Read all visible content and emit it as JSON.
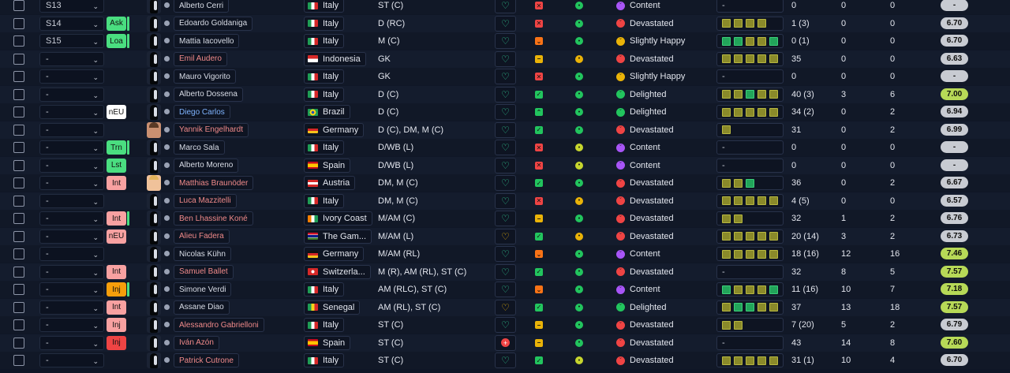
{
  "colors": {
    "badge_green": "#4ade80",
    "badge_red": "#f87171",
    "badge_orange": "#f59e0b",
    "badge_white": "#ffffff",
    "form_green": "#22a45a",
    "form_olive": "#8a8a2a",
    "rating_grey": "#c8cbd2",
    "rating_green": "#b7d957",
    "ok_green": "#22c55e",
    "bad_red": "#ef4444",
    "warn_yellow": "#eab308",
    "warn_orange": "#f97316"
  },
  "rows": [
    {
      "squad": "S13",
      "badge": "",
      "name": "Alberto Cerri",
      "name_style": "normal",
      "avatar": "sil",
      "nation": "Italy",
      "flag": "italy",
      "pos": "ST (C)",
      "heart": "green",
      "status": "x",
      "cond": "ok",
      "mood": "Content",
      "mood_face": "purple",
      "form": [],
      "form_empty": "-",
      "apps": "0",
      "goals": "0",
      "assists": "0",
      "rating": "-",
      "rating_style": "grey"
    },
    {
      "squad": "S14",
      "badge": "Ask",
      "badge_color": "green",
      "badge_edge": true,
      "name": "Edoardo Goldaniga",
      "name_style": "normal",
      "avatar": "sil",
      "nation": "Italy",
      "flag": "italy",
      "pos": "D (RC)",
      "heart": "green",
      "status": "x",
      "cond": "ok",
      "mood": "Devastated",
      "mood_face": "red",
      "form": [
        "olive",
        "olive",
        "olive",
        "olive"
      ],
      "form_empty": "",
      "apps": "1 (3)",
      "goals": "0",
      "assists": "0",
      "rating": "6.70",
      "rating_style": "grey"
    },
    {
      "squad": "S15",
      "badge": "Loa",
      "badge_color": "green",
      "badge_edge": true,
      "name": "Mattia Iacovello",
      "name_style": "normal",
      "avatar": "sil",
      "nation": "Italy",
      "flag": "italy",
      "pos": "M (C)",
      "heart": "green",
      "status": "down",
      "cond": "ok",
      "mood": "Slightly Happy",
      "mood_face": "yellow",
      "form": [
        "green",
        "green",
        "olive",
        "olive",
        "green"
      ],
      "form_empty": "",
      "apps": "0 (1)",
      "goals": "0",
      "assists": "0",
      "rating": "6.70",
      "rating_style": "grey"
    },
    {
      "squad": "-",
      "badge": "",
      "name": "Emil Audero",
      "name_style": "red",
      "avatar": "sil",
      "nation": "Indonesia",
      "flag": "indonesia",
      "pos": "GK",
      "heart": "green",
      "status": "minus",
      "cond": "orange",
      "mood": "Devastated",
      "mood_face": "red",
      "form": [
        "olive",
        "olive",
        "olive",
        "olive",
        "olive"
      ],
      "form_empty": "",
      "apps": "35",
      "goals": "0",
      "assists": "0",
      "rating": "6.63",
      "rating_style": "grey"
    },
    {
      "squad": "-",
      "badge": "",
      "name": "Mauro Vigorito",
      "name_style": "normal",
      "avatar": "sil",
      "nation": "Italy",
      "flag": "italy",
      "pos": "GK",
      "heart": "green",
      "status": "x",
      "cond": "ok",
      "mood": "Slightly Happy",
      "mood_face": "yellow",
      "form": [],
      "form_empty": "-",
      "apps": "0",
      "goals": "0",
      "assists": "0",
      "rating": "-",
      "rating_style": "grey"
    },
    {
      "squad": "-",
      "badge": "",
      "name": "Alberto Dossena",
      "name_style": "normal",
      "avatar": "sil",
      "nation": "Italy",
      "flag": "italy",
      "pos": "D (C)",
      "heart": "green",
      "status": "check",
      "cond": "ok",
      "mood": "Delighted",
      "mood_face": "green",
      "form": [
        "olive",
        "olive",
        "green",
        "olive",
        "olive"
      ],
      "form_empty": "",
      "apps": "40 (3)",
      "goals": "3",
      "assists": "6",
      "rating": "7.00",
      "rating_style": "green"
    },
    {
      "squad": "-",
      "badge": "nEU",
      "badge_color": "white",
      "badge_edge": false,
      "name": "Diego Carlos",
      "name_style": "blue",
      "avatar": "sil",
      "nation": "Brazil",
      "flag": "brazil",
      "pos": "D (C)",
      "heart": "green",
      "status": "up",
      "cond": "ok",
      "mood": "Delighted",
      "mood_face": "green",
      "form": [
        "olive",
        "olive",
        "olive",
        "olive",
        "olive"
      ],
      "form_empty": "",
      "apps": "34 (2)",
      "goals": "0",
      "assists": "2",
      "rating": "6.94",
      "rating_style": "grey"
    },
    {
      "squad": "-",
      "badge": "",
      "name": "Yannik Engelhardt",
      "name_style": "red",
      "avatar": "face-a",
      "nation": "Germany",
      "flag": "germany",
      "pos": "D (C), DM, M (C)",
      "heart": "green",
      "status": "check",
      "cond": "ok",
      "mood": "Devastated",
      "mood_face": "red",
      "form": [
        "olive"
      ],
      "form_empty": "",
      "apps": "31",
      "goals": "0",
      "assists": "2",
      "rating": "6.99",
      "rating_style": "grey"
    },
    {
      "squad": "-",
      "badge": "Trn",
      "badge_color": "green",
      "badge_edge": true,
      "name": "Marco Sala",
      "name_style": "normal",
      "avatar": "sil",
      "nation": "Italy",
      "flag": "italy",
      "pos": "D/WB (L)",
      "heart": "green",
      "status": "x",
      "cond": "yellow",
      "mood": "Content",
      "mood_face": "purple",
      "form": [],
      "form_empty": "-",
      "apps": "0",
      "goals": "0",
      "assists": "0",
      "rating": "-",
      "rating_style": "grey"
    },
    {
      "squad": "-",
      "badge": "Lst",
      "badge_color": "green",
      "badge_edge": false,
      "name": "Alberto Moreno",
      "name_style": "normal",
      "avatar": "sil",
      "nation": "Spain",
      "flag": "spain",
      "pos": "D/WB (L)",
      "heart": "green",
      "status": "x",
      "cond": "yellow",
      "mood": "Content",
      "mood_face": "purple",
      "form": [],
      "form_empty": "-",
      "apps": "0",
      "goals": "0",
      "assists": "0",
      "rating": "-",
      "rating_style": "grey"
    },
    {
      "squad": "-",
      "badge": "Int",
      "badge_color": "red",
      "badge_edge": false,
      "name": "Matthias Braunöder",
      "name_style": "red",
      "avatar": "face-b",
      "nation": "Austria",
      "flag": "austria",
      "pos": "DM, M (C)",
      "heart": "green",
      "status": "check",
      "cond": "ok",
      "mood": "Devastated",
      "mood_face": "red",
      "form": [
        "olive",
        "olive",
        "green"
      ],
      "form_empty": "",
      "apps": "36",
      "goals": "0",
      "assists": "2",
      "rating": "6.67",
      "rating_style": "grey"
    },
    {
      "squad": "-",
      "badge": "",
      "name": "Luca Mazzitelli",
      "name_style": "red",
      "avatar": "sil",
      "nation": "Italy",
      "flag": "italy",
      "pos": "DM, M (C)",
      "heart": "green",
      "status": "x",
      "cond": "orange",
      "mood": "Devastated",
      "mood_face": "red",
      "form": [
        "olive",
        "olive",
        "olive",
        "olive",
        "olive"
      ],
      "form_empty": "",
      "apps": "4 (5)",
      "goals": "0",
      "assists": "0",
      "rating": "6.57",
      "rating_style": "grey"
    },
    {
      "squad": "-",
      "badge": "Int",
      "badge_color": "red",
      "badge_edge": true,
      "name": "Ben Lhassine Koné",
      "name_style": "red",
      "avatar": "sil",
      "nation": "Ivory Coast",
      "flag": "ivory",
      "pos": "M/AM (C)",
      "heart": "green",
      "status": "minus",
      "cond": "ok",
      "mood": "Devastated",
      "mood_face": "red",
      "form": [
        "olive",
        "olive"
      ],
      "form_empty": "",
      "apps": "32",
      "goals": "1",
      "assists": "2",
      "rating": "6.76",
      "rating_style": "grey"
    },
    {
      "squad": "-",
      "badge": "nEU",
      "badge_color": "red",
      "badge_edge": false,
      "name": "Alieu Fadera",
      "name_style": "red",
      "avatar": "sil",
      "nation": "The Gam...",
      "flag": "gambia",
      "pos": "M/AM (L)",
      "heart": "yellow",
      "status": "check",
      "cond": "orange",
      "mood": "Devastated",
      "mood_face": "red",
      "form": [
        "olive",
        "olive",
        "olive",
        "olive",
        "olive"
      ],
      "form_empty": "",
      "apps": "20 (14)",
      "goals": "3",
      "assists": "2",
      "rating": "6.73",
      "rating_style": "grey"
    },
    {
      "squad": "-",
      "badge": "",
      "name": "Nicolas Kühn",
      "name_style": "normal",
      "avatar": "sil",
      "nation": "Germany",
      "flag": "germany",
      "pos": "M/AM (RL)",
      "heart": "green",
      "status": "down",
      "cond": "ok",
      "mood": "Content",
      "mood_face": "purple",
      "form": [
        "olive",
        "olive",
        "olive",
        "olive",
        "olive"
      ],
      "form_empty": "",
      "apps": "18 (16)",
      "goals": "12",
      "assists": "16",
      "rating": "7.46",
      "rating_style": "green"
    },
    {
      "squad": "-",
      "badge": "Int",
      "badge_color": "red",
      "badge_edge": false,
      "name": "Samuel Ballet",
      "name_style": "red",
      "avatar": "sil",
      "nation": "Switzerla...",
      "flag": "swiss",
      "pos": "M (R), AM (RL), ST (C)",
      "heart": "green",
      "status": "check",
      "cond": "ok",
      "mood": "Devastated",
      "mood_face": "red",
      "form": [],
      "form_empty": "-",
      "apps": "32",
      "goals": "8",
      "assists": "5",
      "rating": "7.57",
      "rating_style": "green"
    },
    {
      "squad": "-",
      "badge": "Inj",
      "badge_color": "orange",
      "badge_edge": true,
      "name": "Simone Verdi",
      "name_style": "normal",
      "avatar": "sil",
      "nation": "Italy",
      "flag": "italy",
      "pos": "AM (RLC), ST (C)",
      "heart": "green",
      "status": "down",
      "cond": "ok",
      "mood": "Content",
      "mood_face": "purple",
      "form": [
        "green",
        "olive",
        "olive",
        "olive",
        "green"
      ],
      "form_empty": "",
      "apps": "11 (16)",
      "goals": "10",
      "assists": "7",
      "rating": "7.18",
      "rating_style": "green"
    },
    {
      "squad": "-",
      "badge": "Int",
      "badge_color": "red",
      "badge_edge": false,
      "name": "Assane Diao",
      "name_style": "normal",
      "avatar": "sil",
      "nation": "Senegal",
      "flag": "senegal",
      "pos": "AM (RL), ST (C)",
      "heart": "yellow",
      "status": "check",
      "cond": "ok",
      "mood": "Delighted",
      "mood_face": "green",
      "form": [
        "olive",
        "green",
        "green",
        "olive",
        "olive"
      ],
      "form_empty": "",
      "apps": "37",
      "goals": "13",
      "assists": "18",
      "rating": "7.57",
      "rating_style": "green"
    },
    {
      "squad": "-",
      "badge": "Inj",
      "badge_color": "red",
      "badge_edge": false,
      "name": "Alessandro Gabrielloni",
      "name_style": "red",
      "avatar": "sil",
      "nation": "Italy",
      "flag": "italy",
      "pos": "ST (C)",
      "heart": "green",
      "status": "minus",
      "cond": "ok",
      "mood": "Devastated",
      "mood_face": "red",
      "form": [
        "olive",
        "olive"
      ],
      "form_empty": "",
      "apps": "7 (20)",
      "goals": "5",
      "assists": "2",
      "rating": "6.79",
      "rating_style": "grey"
    },
    {
      "squad": "-",
      "badge": "Inj",
      "badge_color": "redstrong",
      "badge_edge": false,
      "name": "Iván Azón",
      "name_style": "red",
      "avatar": "sil",
      "nation": "Spain",
      "flag": "spain",
      "pos": "ST (C)",
      "heart": "plus",
      "status": "minus",
      "cond": "ok",
      "mood": "Devastated",
      "mood_face": "red",
      "form": [],
      "form_empty": "-",
      "apps": "43",
      "goals": "14",
      "assists": "8",
      "rating": "7.60",
      "rating_style": "green"
    },
    {
      "squad": "-",
      "badge": "",
      "name": "Patrick Cutrone",
      "name_style": "red",
      "avatar": "sil",
      "nation": "Italy",
      "flag": "italy",
      "pos": "ST (C)",
      "heart": "green",
      "status": "check",
      "cond": "yellow",
      "mood": "Devastated",
      "mood_face": "red",
      "form": [
        "olive",
        "olive",
        "olive",
        "olive",
        "olive"
      ],
      "form_empty": "",
      "apps": "31 (1)",
      "goals": "10",
      "assists": "4",
      "rating": "6.70",
      "rating_style": "grey"
    }
  ]
}
